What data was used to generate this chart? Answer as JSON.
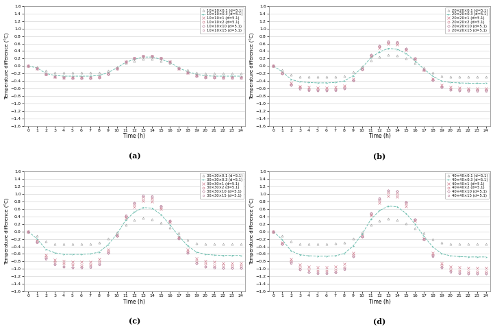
{
  "thicknesses": [
    0.1,
    0.3,
    1,
    2,
    10,
    15
  ],
  "time": [
    0,
    1,
    2,
    3,
    4,
    5,
    6,
    7,
    8,
    9,
    10,
    11,
    12,
    13,
    14,
    15,
    16,
    17,
    18,
    19,
    20,
    21,
    22,
    23,
    24
  ],
  "panel_a_curves": {
    "t01": [
      0.0,
      -0.03,
      -0.13,
      -0.17,
      -0.18,
      -0.18,
      -0.18,
      -0.18,
      -0.17,
      -0.12,
      -0.03,
      0.08,
      0.14,
      0.18,
      0.18,
      0.14,
      0.08,
      -0.03,
      -0.1,
      -0.17,
      -0.2,
      -0.2,
      -0.2,
      -0.2,
      -0.2
    ],
    "t03": [
      0.0,
      -0.05,
      -0.2,
      -0.25,
      -0.27,
      -0.27,
      -0.27,
      -0.27,
      -0.25,
      -0.18,
      -0.05,
      0.1,
      0.18,
      0.24,
      0.24,
      0.18,
      0.1,
      -0.05,
      -0.15,
      -0.22,
      -0.26,
      -0.27,
      -0.27,
      -0.27,
      -0.27
    ],
    "t1": [
      0.0,
      -0.06,
      -0.22,
      -0.28,
      -0.3,
      -0.3,
      -0.3,
      -0.3,
      -0.28,
      -0.2,
      -0.06,
      0.12,
      0.2,
      0.27,
      0.27,
      0.2,
      0.12,
      -0.06,
      -0.17,
      -0.25,
      -0.28,
      -0.29,
      -0.3,
      -0.3,
      -0.3
    ],
    "t2": [
      0.0,
      -0.06,
      -0.22,
      -0.28,
      -0.3,
      -0.31,
      -0.31,
      -0.31,
      -0.29,
      -0.21,
      -0.07,
      0.12,
      0.21,
      0.27,
      0.27,
      0.21,
      0.12,
      -0.07,
      -0.17,
      -0.25,
      -0.29,
      -0.3,
      -0.31,
      -0.31,
      -0.31
    ],
    "t10": [
      0.0,
      -0.06,
      -0.22,
      -0.29,
      -0.31,
      -0.32,
      -0.32,
      -0.32,
      -0.3,
      -0.22,
      -0.07,
      0.12,
      0.21,
      0.27,
      0.27,
      0.21,
      0.12,
      -0.07,
      -0.18,
      -0.26,
      -0.3,
      -0.31,
      -0.31,
      -0.31,
      -0.31
    ],
    "t15": [
      0.0,
      -0.06,
      -0.23,
      -0.29,
      -0.32,
      -0.32,
      -0.32,
      -0.32,
      -0.3,
      -0.22,
      -0.07,
      0.12,
      0.22,
      0.28,
      0.28,
      0.22,
      0.12,
      -0.07,
      -0.18,
      -0.26,
      -0.3,
      -0.31,
      -0.32,
      -0.32,
      -0.32
    ]
  },
  "panel_b_curves": {
    "t01": [
      0.0,
      -0.1,
      -0.23,
      -0.28,
      -0.29,
      -0.29,
      -0.29,
      -0.28,
      -0.26,
      -0.16,
      -0.02,
      0.15,
      0.25,
      0.3,
      0.28,
      0.2,
      0.08,
      -0.05,
      -0.18,
      -0.26,
      -0.28,
      -0.29,
      -0.29,
      -0.29,
      -0.29
    ],
    "t03": [
      0.0,
      -0.15,
      -0.36,
      -0.42,
      -0.44,
      -0.45,
      -0.45,
      -0.44,
      -0.4,
      -0.26,
      -0.05,
      0.22,
      0.38,
      0.47,
      0.45,
      0.33,
      0.14,
      -0.08,
      -0.27,
      -0.4,
      -0.44,
      -0.45,
      -0.46,
      -0.46,
      -0.46
    ],
    "t1": [
      0.0,
      -0.18,
      -0.45,
      -0.54,
      -0.57,
      -0.58,
      -0.58,
      -0.57,
      -0.52,
      -0.34,
      -0.07,
      0.27,
      0.48,
      0.6,
      0.57,
      0.42,
      0.18,
      -0.1,
      -0.34,
      -0.51,
      -0.57,
      -0.58,
      -0.59,
      -0.59,
      -0.59
    ],
    "t2": [
      0.0,
      -0.19,
      -0.48,
      -0.57,
      -0.61,
      -0.62,
      -0.62,
      -0.61,
      -0.56,
      -0.37,
      -0.08,
      0.28,
      0.51,
      0.63,
      0.61,
      0.45,
      0.19,
      -0.11,
      -0.36,
      -0.54,
      -0.6,
      -0.62,
      -0.63,
      -0.63,
      -0.63
    ],
    "t10": [
      0.0,
      -0.2,
      -0.5,
      -0.6,
      -0.64,
      -0.65,
      -0.65,
      -0.64,
      -0.59,
      -0.38,
      -0.08,
      0.3,
      0.53,
      0.65,
      0.63,
      0.47,
      0.2,
      -0.11,
      -0.37,
      -0.56,
      -0.63,
      -0.65,
      -0.66,
      -0.66,
      -0.66
    ],
    "t15": [
      0.0,
      -0.2,
      -0.51,
      -0.61,
      -0.65,
      -0.66,
      -0.66,
      -0.65,
      -0.6,
      -0.39,
      -0.08,
      0.3,
      0.54,
      0.66,
      0.64,
      0.47,
      0.2,
      -0.11,
      -0.37,
      -0.57,
      -0.64,
      -0.66,
      -0.67,
      -0.67,
      -0.67
    ]
  },
  "panel_c_curves": {
    "t01": [
      0.0,
      -0.11,
      -0.27,
      -0.33,
      -0.34,
      -0.34,
      -0.34,
      -0.33,
      -0.3,
      -0.19,
      -0.02,
      0.18,
      0.3,
      0.36,
      0.33,
      0.24,
      0.1,
      -0.05,
      -0.22,
      -0.31,
      -0.34,
      -0.34,
      -0.34,
      -0.34,
      -0.34
    ],
    "t03": [
      0.0,
      -0.2,
      -0.48,
      -0.57,
      -0.61,
      -0.61,
      -0.61,
      -0.6,
      -0.55,
      -0.36,
      -0.07,
      0.3,
      0.52,
      0.64,
      0.62,
      0.45,
      0.18,
      -0.12,
      -0.38,
      -0.55,
      -0.61,
      -0.63,
      -0.64,
      -0.64,
      -0.64
    ],
    "t1": [
      0.0,
      -0.25,
      -0.62,
      -0.75,
      -0.8,
      -0.82,
      -0.82,
      -0.81,
      -0.74,
      -0.49,
      -0.1,
      0.37,
      0.66,
      0.82,
      0.8,
      0.59,
      0.25,
      -0.16,
      -0.49,
      -0.72,
      -0.8,
      -0.82,
      -0.84,
      -0.84,
      -0.84
    ],
    "t2": [
      0.0,
      -0.27,
      -0.68,
      -0.82,
      -0.87,
      -0.89,
      -0.9,
      -0.88,
      -0.81,
      -0.54,
      -0.11,
      0.4,
      0.72,
      0.89,
      0.87,
      0.64,
      0.27,
      -0.17,
      -0.54,
      -0.79,
      -0.87,
      -0.9,
      -0.91,
      -0.92,
      -0.92
    ],
    "t10": [
      0.0,
      -0.28,
      -0.72,
      -0.87,
      -0.93,
      -0.95,
      -0.95,
      -0.94,
      -0.86,
      -0.57,
      -0.12,
      0.42,
      0.76,
      0.95,
      0.92,
      0.68,
      0.28,
      -0.18,
      -0.57,
      -0.84,
      -0.93,
      -0.96,
      -0.97,
      -0.97,
      -0.97
    ],
    "t15": [
      0.0,
      -0.29,
      -0.73,
      -0.88,
      -0.94,
      -0.97,
      -0.97,
      -0.95,
      -0.88,
      -0.58,
      -0.12,
      0.43,
      0.77,
      0.96,
      0.94,
      0.69,
      0.29,
      -0.18,
      -0.58,
      -0.85,
      -0.94,
      -0.97,
      -0.98,
      -0.98,
      -0.98
    ]
  },
  "panel_d_curves": {
    "t01": [
      0.0,
      -0.12,
      -0.27,
      -0.33,
      -0.33,
      -0.33,
      -0.33,
      -0.32,
      -0.29,
      -0.18,
      -0.02,
      0.17,
      0.29,
      0.34,
      0.31,
      0.22,
      0.09,
      -0.05,
      -0.21,
      -0.3,
      -0.33,
      -0.33,
      -0.33,
      -0.33,
      -0.33
    ],
    "t03": [
      0.0,
      -0.22,
      -0.52,
      -0.62,
      -0.65,
      -0.66,
      -0.66,
      -0.65,
      -0.59,
      -0.39,
      -0.08,
      0.32,
      0.56,
      0.68,
      0.66,
      0.48,
      0.2,
      -0.13,
      -0.41,
      -0.59,
      -0.65,
      -0.67,
      -0.68,
      -0.68,
      -0.68
    ],
    "t1": [
      0.0,
      -0.3,
      -0.73,
      -0.88,
      -0.94,
      -0.96,
      -0.96,
      -0.94,
      -0.87,
      -0.57,
      -0.12,
      0.43,
      0.77,
      0.95,
      0.93,
      0.68,
      0.29,
      -0.18,
      -0.57,
      -0.84,
      -0.93,
      -0.96,
      -0.97,
      -0.97,
      -0.97
    ],
    "t2": [
      0.0,
      -0.32,
      -0.79,
      -0.96,
      -1.02,
      -1.04,
      -1.05,
      -1.03,
      -0.95,
      -0.63,
      -0.13,
      0.46,
      0.83,
      1.03,
      1.01,
      0.74,
      0.31,
      -0.2,
      -0.62,
      -0.91,
      -1.01,
      -1.04,
      -1.06,
      -1.06,
      -1.06
    ],
    "t10": [
      0.0,
      -0.33,
      -0.83,
      -1.01,
      -1.08,
      -1.1,
      -1.11,
      -1.09,
      -1.0,
      -0.66,
      -0.14,
      0.49,
      0.88,
      1.09,
      1.07,
      0.79,
      0.33,
      -0.21,
      -0.65,
      -0.96,
      -1.07,
      -1.1,
      -1.12,
      -1.12,
      -1.12
    ],
    "t15": [
      0.0,
      -0.34,
      -0.84,
      -1.02,
      -1.09,
      -1.12,
      -1.12,
      -1.1,
      -1.01,
      -0.67,
      -0.14,
      0.49,
      0.89,
      1.1,
      1.08,
      0.8,
      0.33,
      -0.21,
      -0.66,
      -0.97,
      -1.08,
      -1.12,
      -1.13,
      -1.13,
      -1.13
    ]
  },
  "series_configs": [
    {
      "color": "#a8a8a8",
      "marker": "^",
      "ls": "none",
      "lw": 0.5,
      "ms": 2.2,
      "mew": 0.5
    },
    {
      "color": "#70bfb0",
      "marker": "4",
      "ls": "--",
      "lw": 0.7,
      "ms": 2.2,
      "mew": 0.5
    },
    {
      "color": "#d08090",
      "marker": "x",
      "ls": "none",
      "lw": 0.5,
      "ms": 2.2,
      "mew": 0.5
    },
    {
      "color": "#d08090",
      "marker": "o",
      "ls": "none",
      "lw": 0.5,
      "ms": 2.2,
      "mew": 0.5
    },
    {
      "color": "#c090a8",
      "marker": "D",
      "ls": "none",
      "lw": 0.5,
      "ms": 2.0,
      "mew": 0.5
    },
    {
      "color": "#c090a8",
      "marker": "s",
      "ls": "none",
      "lw": 0.5,
      "ms": 2.0,
      "mew": 0.5
    }
  ],
  "ylabel": "Temperature difference (°C)",
  "xlabel": "Time (h)",
  "ylim": [
    -1.6,
    1.6
  ],
  "yticks": [
    -1.6,
    -1.4,
    -1.2,
    -1.0,
    -0.8,
    -0.6,
    -0.4,
    -0.2,
    0.0,
    0.2,
    0.4,
    0.6,
    0.8,
    1.0,
    1.2,
    1.4,
    1.6
  ],
  "xticks": [
    0,
    1,
    2,
    3,
    4,
    5,
    6,
    7,
    8,
    9,
    10,
    11,
    12,
    13,
    14,
    15,
    16,
    17,
    18,
    19,
    20,
    21,
    22,
    23,
    24
  ],
  "subplot_labels": [
    "(a)",
    "(b)",
    "(c)",
    "(d)"
  ],
  "size_names": [
    "10×10",
    "20×20",
    "30×30",
    "40×40"
  ],
  "thicknesses_labels": [
    "0.1",
    "0.3",
    "1",
    "2",
    "10",
    "15"
  ],
  "depth": "5.1"
}
